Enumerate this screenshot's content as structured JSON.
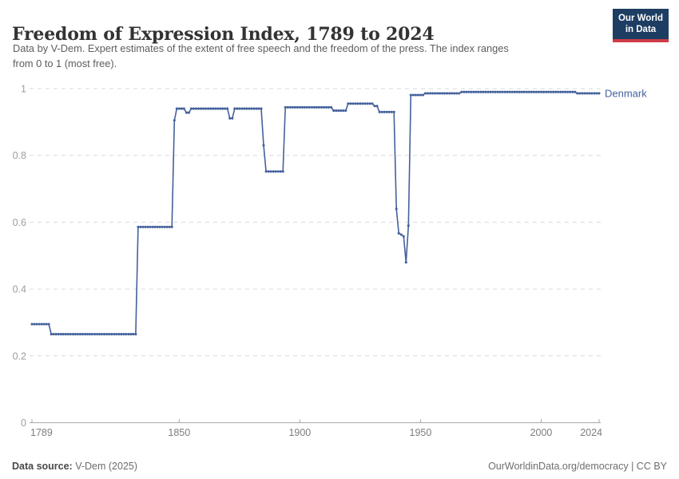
{
  "header": {
    "title": "Freedom of Expression Index, 1789 to 2024",
    "subtitle_lines": [
      "Data by V-Dem. Expert estimates of the extent of free speech and the freedom of the press. The index ranges",
      "from 0 to 1 (most free)."
    ],
    "logo": {
      "line1": "Our World",
      "line2": "in Data",
      "bg_color": "#1d3d63",
      "bar_color": "#cf3b4a"
    }
  },
  "chart_data": {
    "type": "line",
    "title": "Freedom of Expression Index, 1789 to 2024",
    "entity_label": "Denmark",
    "line_color": "#44619c",
    "grid_color": "#dadada",
    "axis_color": "#a9a9a9",
    "x_label_color": "#7d7d7d",
    "y_label_color": "#9e9e9e",
    "x_range": [
      1789,
      2024
    ],
    "y_range": [
      0,
      1
    ],
    "x_ticks": [
      1789,
      1850,
      1900,
      1950,
      2000,
      2024
    ],
    "y_ticks": [
      0,
      0.2,
      0.4,
      0.6,
      0.8,
      1
    ],
    "y_tick_labels": [
      "0",
      "0.2",
      "0.4",
      "0.6",
      "0.8",
      "1"
    ],
    "legend_position": "right-of-line-end",
    "grid": "dashed horizontal",
    "series": [
      {
        "name": "Denmark",
        "value_segments_year_start_end_value": [
          [
            1789,
            1796,
            0.295
          ],
          [
            1797,
            1832,
            0.265
          ],
          [
            1833,
            1847,
            0.586
          ],
          [
            1848,
            1848,
            0.905
          ],
          [
            1849,
            1852,
            0.94
          ],
          [
            1853,
            1854,
            0.928
          ],
          [
            1855,
            1870,
            0.94
          ],
          [
            1871,
            1872,
            0.911
          ],
          [
            1873,
            1884,
            0.94
          ],
          [
            1885,
            1885,
            0.83
          ],
          [
            1886,
            1893,
            0.752
          ],
          [
            1894,
            1913,
            0.944
          ],
          [
            1914,
            1919,
            0.934
          ],
          [
            1920,
            1930,
            0.955
          ],
          [
            1931,
            1932,
            0.948
          ],
          [
            1933,
            1939,
            0.93
          ],
          [
            1940,
            1940,
            0.64
          ],
          [
            1941,
            1941,
            0.567
          ],
          [
            1942,
            1942,
            0.563
          ],
          [
            1943,
            1943,
            0.558
          ],
          [
            1944,
            1944,
            0.48
          ],
          [
            1945,
            1945,
            0.59
          ],
          [
            1946,
            1951,
            0.981
          ],
          [
            1952,
            1966,
            0.986
          ],
          [
            1967,
            2014,
            0.99
          ],
          [
            2015,
            2024,
            0.986
          ]
        ]
      }
    ]
  },
  "footer": {
    "datasource_label": "Data source:",
    "datasource_value": " V-Dem (2025)",
    "credit": "OurWorldinData.org/democracy | CC BY"
  }
}
